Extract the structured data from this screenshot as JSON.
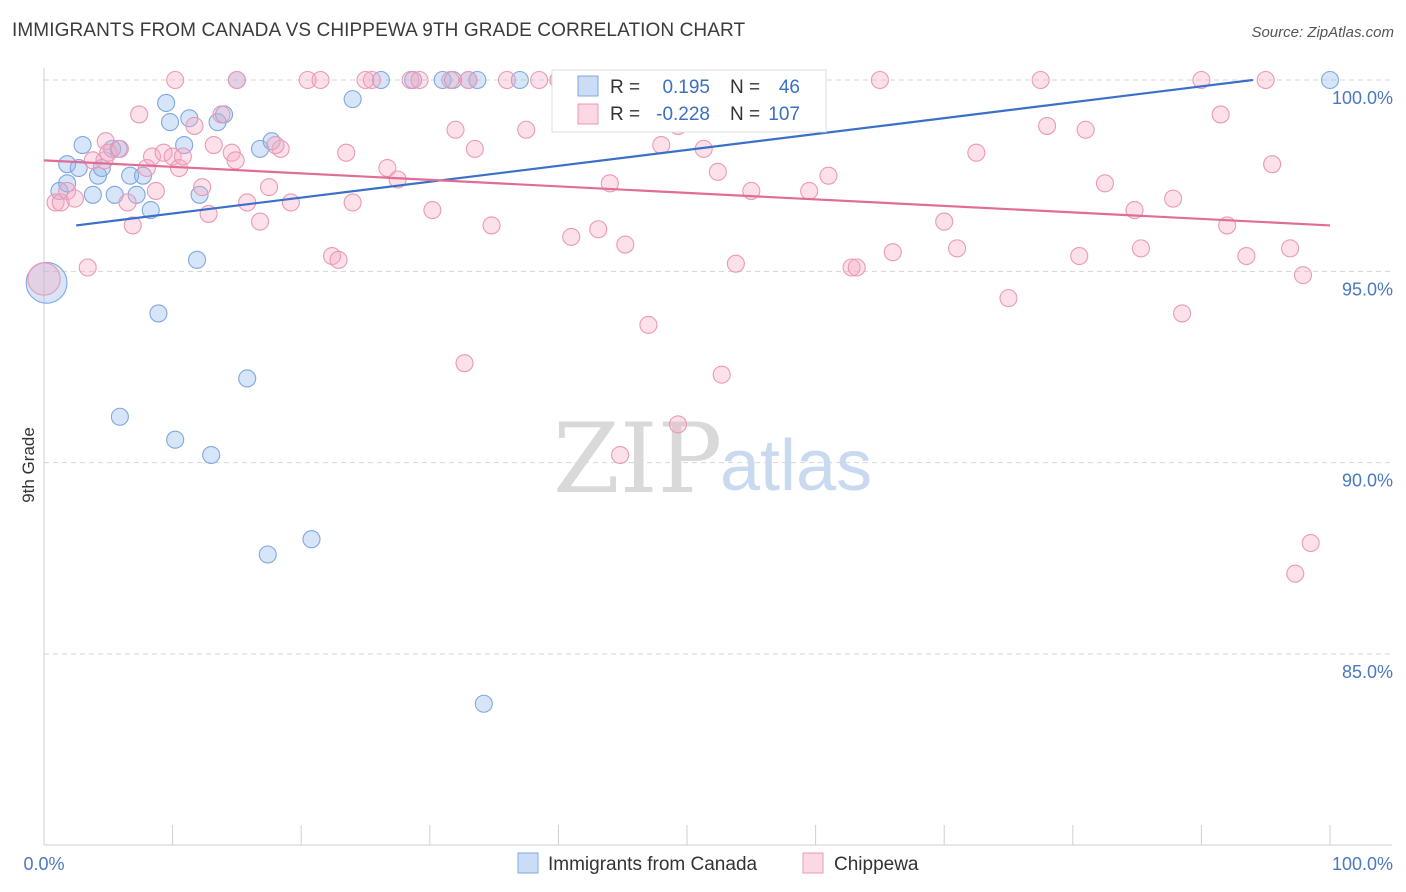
{
  "header": {
    "title": "IMMIGRANTS FROM CANADA VS CHIPPEWA 9TH GRADE CORRELATION CHART",
    "source": "Source: ZipAtlas.com"
  },
  "colors": {
    "blue": "#7fa8e0",
    "blue_fill": "rgba(140,180,235,0.35)",
    "blue_line": "#3a70c8",
    "pink": "#eb99b4",
    "pink_fill": "rgba(245,170,195,0.35)",
    "pink_line": "#e06d95",
    "grid": "#d5d5d5",
    "tick_text": "#4a78c2"
  },
  "legend_box": {
    "rows": [
      {
        "r_label": "R =",
        "r_value": "0.195",
        "n_label": "N =",
        "n_value": "46",
        "series": "blue"
      },
      {
        "r_label": "R =",
        "r_value": "-0.228",
        "n_label": "N =",
        "n_value": "107",
        "series": "pink"
      }
    ]
  },
  "bottom_legend": {
    "items": [
      {
        "label": "Immigrants from Canada",
        "series": "blue"
      },
      {
        "label": "Chippewa",
        "series": "pink"
      }
    ]
  },
  "watermark": {
    "zip": "ZIP",
    "atlas": "atlas"
  },
  "chart_data": {
    "type": "scatter",
    "title": "IMMIGRANTS FROM CANADA VS CHIPPEWA 9TH GRADE CORRELATION CHART",
    "xlabel": "",
    "ylabel": "9th Grade",
    "xlim": [
      0,
      100
    ],
    "ylim": [
      80.5,
      100.8
    ],
    "x_tick_labels": [
      {
        "value": 0,
        "label": "0.0%"
      },
      {
        "value": 100,
        "label": "100.0%"
      }
    ],
    "y_tick_labels": [
      {
        "value": 100,
        "label": "100.0%"
      },
      {
        "value": 95,
        "label": "95.0%"
      },
      {
        "value": 90,
        "label": "90.0%"
      },
      {
        "value": 85,
        "label": "85.0%"
      }
    ],
    "grid": true,
    "legend_position": "top-center",
    "series": [
      {
        "name": "Immigrants from Canada",
        "color": "blue",
        "r": 0.195,
        "n": 46,
        "trend": [
          [
            2.5,
            96.2
          ],
          [
            94,
            100.0
          ]
        ],
        "points": [
          [
            0.2,
            94.7,
            2.4
          ],
          [
            1.2,
            97.1,
            1
          ],
          [
            1.8,
            97.3,
            1
          ],
          [
            1.8,
            97.8,
            1
          ],
          [
            2.7,
            97.7,
            1
          ],
          [
            3.0,
            98.3,
            1
          ],
          [
            3.8,
            97.0,
            1
          ],
          [
            4.2,
            97.5,
            1
          ],
          [
            4.5,
            97.7,
            1
          ],
          [
            5.3,
            98.2,
            1
          ],
          [
            5.8,
            98.2,
            1
          ],
          [
            5.5,
            97.0,
            1
          ],
          [
            6.7,
            97.5,
            1
          ],
          [
            7.2,
            97.0,
            1
          ],
          [
            7.7,
            97.5,
            1
          ],
          [
            8.3,
            96.6,
            1
          ],
          [
            9.5,
            99.4,
            1
          ],
          [
            9.8,
            98.9,
            1
          ],
          [
            10.9,
            98.3,
            1
          ],
          [
            11.3,
            99.0,
            1
          ],
          [
            12.1,
            97.0,
            1
          ],
          [
            13.5,
            98.9,
            1
          ],
          [
            14.0,
            99.1,
            1
          ],
          [
            15.0,
            100.0,
            1
          ],
          [
            16.8,
            98.2,
            1
          ],
          [
            17.7,
            98.4,
            1
          ],
          [
            24.0,
            99.5,
            1
          ],
          [
            26.2,
            100.0,
            1
          ],
          [
            28.7,
            100.0,
            1
          ],
          [
            31.0,
            100.0,
            1
          ],
          [
            31.8,
            100.0,
            1
          ],
          [
            33.0,
            100.0,
            1
          ],
          [
            33.7,
            100.0,
            1
          ],
          [
            50.0,
            100.0,
            1
          ],
          [
            100.0,
            100.0,
            1
          ],
          [
            11.9,
            95.3,
            1
          ],
          [
            8.9,
            93.9,
            1
          ],
          [
            15.8,
            92.2,
            1
          ],
          [
            5.9,
            91.2,
            1
          ],
          [
            10.2,
            90.6,
            1
          ],
          [
            13.0,
            90.2,
            1
          ],
          [
            17.4,
            87.6,
            1
          ],
          [
            20.8,
            88.0,
            1
          ],
          [
            34.2,
            83.7,
            1
          ],
          [
            40.0,
            100.0,
            1
          ],
          [
            37.0,
            100.0,
            1
          ]
        ]
      },
      {
        "name": "Chippewa",
        "color": "pink",
        "r": -0.228,
        "n": 107,
        "trend": [
          [
            0,
            97.9
          ],
          [
            100,
            96.2
          ]
        ],
        "points": [
          [
            0.0,
            94.8,
            1.9
          ],
          [
            0.9,
            96.8,
            1
          ],
          [
            1.3,
            96.8,
            1
          ],
          [
            1.8,
            97.1,
            1
          ],
          [
            2.4,
            96.9,
            1
          ],
          [
            3.4,
            95.1,
            1
          ],
          [
            3.8,
            97.9,
            1
          ],
          [
            4.7,
            97.9,
            1
          ],
          [
            4.8,
            98.4,
            1
          ],
          [
            5.0,
            98.1,
            1
          ],
          [
            5.9,
            98.2,
            1
          ],
          [
            6.5,
            96.8,
            1
          ],
          [
            6.9,
            96.2,
            1
          ],
          [
            7.4,
            99.1,
            1
          ],
          [
            8.0,
            97.7,
            1
          ],
          [
            8.4,
            98.0,
            1
          ],
          [
            8.7,
            97.1,
            1
          ],
          [
            9.3,
            98.1,
            1
          ],
          [
            10.0,
            98.0,
            1
          ],
          [
            10.5,
            97.7,
            1
          ],
          [
            10.8,
            98.0,
            1
          ],
          [
            11.7,
            98.8,
            1
          ],
          [
            12.3,
            97.2,
            1
          ],
          [
            12.8,
            96.5,
            1
          ],
          [
            13.2,
            98.3,
            1
          ],
          [
            13.8,
            99.1,
            1
          ],
          [
            14.6,
            98.1,
            1
          ],
          [
            14.9,
            97.9,
            1
          ],
          [
            15.8,
            96.8,
            1
          ],
          [
            16.8,
            96.3,
            1
          ],
          [
            17.5,
            97.2,
            1
          ],
          [
            18.4,
            98.2,
            1
          ],
          [
            19.2,
            96.8,
            1
          ],
          [
            20.5,
            100.0,
            1
          ],
          [
            22.4,
            95.4,
            1
          ],
          [
            23.5,
            98.1,
            1
          ],
          [
            24.0,
            96.8,
            1
          ],
          [
            25.5,
            100.0,
            1
          ],
          [
            26.7,
            97.7,
            1
          ],
          [
            27.5,
            97.4,
            1
          ],
          [
            28.5,
            100.0,
            1
          ],
          [
            29.2,
            100.0,
            1
          ],
          [
            31.6,
            100.0,
            1
          ],
          [
            32.0,
            98.7,
            1
          ],
          [
            33.0,
            100.0,
            1
          ],
          [
            33.5,
            98.2,
            1
          ],
          [
            34.8,
            96.2,
            1
          ],
          [
            36.0,
            100.0,
            1
          ],
          [
            37.5,
            98.7,
            1
          ],
          [
            40.0,
            100.0,
            1
          ],
          [
            41.0,
            95.9,
            1
          ],
          [
            43.1,
            96.1,
            1
          ],
          [
            44.0,
            97.3,
            1
          ],
          [
            45.2,
            95.7,
            1
          ],
          [
            46.0,
            100.0,
            1
          ],
          [
            48.0,
            98.3,
            1
          ],
          [
            49.3,
            98.8,
            1
          ],
          [
            50.0,
            100.0,
            1
          ],
          [
            51.3,
            98.2,
            1
          ],
          [
            52.4,
            97.6,
            1
          ],
          [
            53.8,
            95.2,
            1
          ],
          [
            55.0,
            97.1,
            1
          ],
          [
            57.0,
            100.0,
            1
          ],
          [
            59.5,
            97.1,
            1
          ],
          [
            61.0,
            97.5,
            1
          ],
          [
            62.8,
            95.1,
            1
          ],
          [
            63.2,
            95.1,
            1
          ],
          [
            65.0,
            100.0,
            1
          ],
          [
            66.0,
            95.5,
            1
          ],
          [
            70.0,
            96.3,
            1
          ],
          [
            71.0,
            95.6,
            1
          ],
          [
            72.5,
            98.1,
            1
          ],
          [
            75.0,
            94.3,
            1
          ],
          [
            77.5,
            100.0,
            1
          ],
          [
            78.0,
            98.8,
            1
          ],
          [
            80.5,
            95.4,
            1
          ],
          [
            81.0,
            98.7,
            1
          ],
          [
            82.5,
            97.3,
            1
          ],
          [
            84.8,
            96.6,
            1
          ],
          [
            85.3,
            95.6,
            1
          ],
          [
            87.8,
            96.9,
            1
          ],
          [
            88.5,
            93.9,
            1
          ],
          [
            90.0,
            100.0,
            1
          ],
          [
            91.5,
            99.1,
            1
          ],
          [
            92.0,
            96.2,
            1
          ],
          [
            93.5,
            95.4,
            1
          ],
          [
            95.0,
            100.0,
            1
          ],
          [
            95.5,
            97.8,
            1
          ],
          [
            96.9,
            95.6,
            1
          ],
          [
            97.9,
            94.9,
            1
          ],
          [
            98.5,
            87.9,
            1
          ],
          [
            97.3,
            87.1,
            1
          ],
          [
            32.7,
            92.6,
            1
          ],
          [
            45.5,
            100.0,
            1
          ],
          [
            47.0,
            93.6,
            1
          ],
          [
            52.7,
            92.3,
            1
          ],
          [
            49.3,
            91.0,
            1
          ],
          [
            44.8,
            90.2,
            1
          ],
          [
            22.9,
            95.3,
            1
          ],
          [
            38.5,
            100.0,
            1
          ],
          [
            54.5,
            100.0,
            1
          ],
          [
            30.2,
            96.6,
            1
          ],
          [
            25.0,
            100.0,
            1
          ],
          [
            15.0,
            100.0,
            1
          ],
          [
            18.0,
            98.3,
            1
          ],
          [
            10.2,
            100.0,
            1
          ],
          [
            21.5,
            100.0,
            1
          ]
        ]
      }
    ]
  }
}
